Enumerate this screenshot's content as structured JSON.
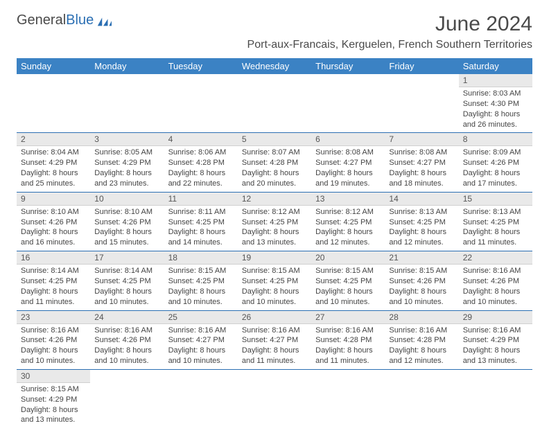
{
  "logo": {
    "text_a": "General",
    "text_b": "Blue"
  },
  "title": "June 2024",
  "location": "Port-aux-Francais, Kerguelen, French Southern Territories",
  "colors": {
    "header_bg": "#3b82c4",
    "header_text": "#ffffff",
    "grid_line": "#2b6fb3",
    "daynum_bg": "#e9e9e9",
    "body_text": "#444444",
    "title_text": "#4a4a4a"
  },
  "weekdays": [
    "Sunday",
    "Monday",
    "Tuesday",
    "Wednesday",
    "Thursday",
    "Friday",
    "Saturday"
  ],
  "weeks": [
    [
      null,
      null,
      null,
      null,
      null,
      null,
      {
        "n": "1",
        "sr": "Sunrise: 8:03 AM",
        "ss": "Sunset: 4:30 PM",
        "dl1": "Daylight: 8 hours",
        "dl2": "and 26 minutes."
      }
    ],
    [
      {
        "n": "2",
        "sr": "Sunrise: 8:04 AM",
        "ss": "Sunset: 4:29 PM",
        "dl1": "Daylight: 8 hours",
        "dl2": "and 25 minutes."
      },
      {
        "n": "3",
        "sr": "Sunrise: 8:05 AM",
        "ss": "Sunset: 4:29 PM",
        "dl1": "Daylight: 8 hours",
        "dl2": "and 23 minutes."
      },
      {
        "n": "4",
        "sr": "Sunrise: 8:06 AM",
        "ss": "Sunset: 4:28 PM",
        "dl1": "Daylight: 8 hours",
        "dl2": "and 22 minutes."
      },
      {
        "n": "5",
        "sr": "Sunrise: 8:07 AM",
        "ss": "Sunset: 4:28 PM",
        "dl1": "Daylight: 8 hours",
        "dl2": "and 20 minutes."
      },
      {
        "n": "6",
        "sr": "Sunrise: 8:08 AM",
        "ss": "Sunset: 4:27 PM",
        "dl1": "Daylight: 8 hours",
        "dl2": "and 19 minutes."
      },
      {
        "n": "7",
        "sr": "Sunrise: 8:08 AM",
        "ss": "Sunset: 4:27 PM",
        "dl1": "Daylight: 8 hours",
        "dl2": "and 18 minutes."
      },
      {
        "n": "8",
        "sr": "Sunrise: 8:09 AM",
        "ss": "Sunset: 4:26 PM",
        "dl1": "Daylight: 8 hours",
        "dl2": "and 17 minutes."
      }
    ],
    [
      {
        "n": "9",
        "sr": "Sunrise: 8:10 AM",
        "ss": "Sunset: 4:26 PM",
        "dl1": "Daylight: 8 hours",
        "dl2": "and 16 minutes."
      },
      {
        "n": "10",
        "sr": "Sunrise: 8:10 AM",
        "ss": "Sunset: 4:26 PM",
        "dl1": "Daylight: 8 hours",
        "dl2": "and 15 minutes."
      },
      {
        "n": "11",
        "sr": "Sunrise: 8:11 AM",
        "ss": "Sunset: 4:25 PM",
        "dl1": "Daylight: 8 hours",
        "dl2": "and 14 minutes."
      },
      {
        "n": "12",
        "sr": "Sunrise: 8:12 AM",
        "ss": "Sunset: 4:25 PM",
        "dl1": "Daylight: 8 hours",
        "dl2": "and 13 minutes."
      },
      {
        "n": "13",
        "sr": "Sunrise: 8:12 AM",
        "ss": "Sunset: 4:25 PM",
        "dl1": "Daylight: 8 hours",
        "dl2": "and 12 minutes."
      },
      {
        "n": "14",
        "sr": "Sunrise: 8:13 AM",
        "ss": "Sunset: 4:25 PM",
        "dl1": "Daylight: 8 hours",
        "dl2": "and 12 minutes."
      },
      {
        "n": "15",
        "sr": "Sunrise: 8:13 AM",
        "ss": "Sunset: 4:25 PM",
        "dl1": "Daylight: 8 hours",
        "dl2": "and 11 minutes."
      }
    ],
    [
      {
        "n": "16",
        "sr": "Sunrise: 8:14 AM",
        "ss": "Sunset: 4:25 PM",
        "dl1": "Daylight: 8 hours",
        "dl2": "and 11 minutes."
      },
      {
        "n": "17",
        "sr": "Sunrise: 8:14 AM",
        "ss": "Sunset: 4:25 PM",
        "dl1": "Daylight: 8 hours",
        "dl2": "and 10 minutes."
      },
      {
        "n": "18",
        "sr": "Sunrise: 8:15 AM",
        "ss": "Sunset: 4:25 PM",
        "dl1": "Daylight: 8 hours",
        "dl2": "and 10 minutes."
      },
      {
        "n": "19",
        "sr": "Sunrise: 8:15 AM",
        "ss": "Sunset: 4:25 PM",
        "dl1": "Daylight: 8 hours",
        "dl2": "and 10 minutes."
      },
      {
        "n": "20",
        "sr": "Sunrise: 8:15 AM",
        "ss": "Sunset: 4:25 PM",
        "dl1": "Daylight: 8 hours",
        "dl2": "and 10 minutes."
      },
      {
        "n": "21",
        "sr": "Sunrise: 8:15 AM",
        "ss": "Sunset: 4:26 PM",
        "dl1": "Daylight: 8 hours",
        "dl2": "and 10 minutes."
      },
      {
        "n": "22",
        "sr": "Sunrise: 8:16 AM",
        "ss": "Sunset: 4:26 PM",
        "dl1": "Daylight: 8 hours",
        "dl2": "and 10 minutes."
      }
    ],
    [
      {
        "n": "23",
        "sr": "Sunrise: 8:16 AM",
        "ss": "Sunset: 4:26 PM",
        "dl1": "Daylight: 8 hours",
        "dl2": "and 10 minutes."
      },
      {
        "n": "24",
        "sr": "Sunrise: 8:16 AM",
        "ss": "Sunset: 4:26 PM",
        "dl1": "Daylight: 8 hours",
        "dl2": "and 10 minutes."
      },
      {
        "n": "25",
        "sr": "Sunrise: 8:16 AM",
        "ss": "Sunset: 4:27 PM",
        "dl1": "Daylight: 8 hours",
        "dl2": "and 10 minutes."
      },
      {
        "n": "26",
        "sr": "Sunrise: 8:16 AM",
        "ss": "Sunset: 4:27 PM",
        "dl1": "Daylight: 8 hours",
        "dl2": "and 11 minutes."
      },
      {
        "n": "27",
        "sr": "Sunrise: 8:16 AM",
        "ss": "Sunset: 4:28 PM",
        "dl1": "Daylight: 8 hours",
        "dl2": "and 11 minutes."
      },
      {
        "n": "28",
        "sr": "Sunrise: 8:16 AM",
        "ss": "Sunset: 4:28 PM",
        "dl1": "Daylight: 8 hours",
        "dl2": "and 12 minutes."
      },
      {
        "n": "29",
        "sr": "Sunrise: 8:16 AM",
        "ss": "Sunset: 4:29 PM",
        "dl1": "Daylight: 8 hours",
        "dl2": "and 13 minutes."
      }
    ],
    [
      {
        "n": "30",
        "sr": "Sunrise: 8:15 AM",
        "ss": "Sunset: 4:29 PM",
        "dl1": "Daylight: 8 hours",
        "dl2": "and 13 minutes."
      },
      null,
      null,
      null,
      null,
      null,
      null
    ]
  ]
}
